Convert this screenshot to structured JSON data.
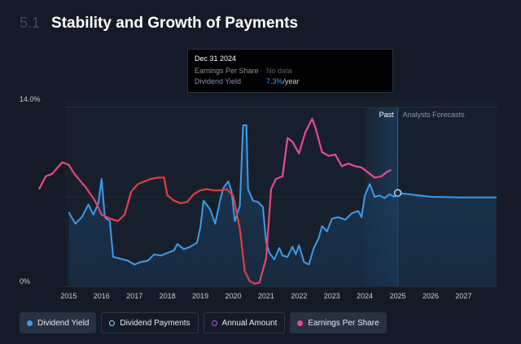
{
  "header": {
    "section_number": "5.1",
    "title": "Stability and Growth of Payments"
  },
  "tooltip": {
    "date": "Dec 31 2024",
    "eps_label": "Earnings Per Share",
    "eps_value": "No data",
    "yield_label": "Dividend Yield",
    "yield_value": "7.3%",
    "yield_unit": "/year"
  },
  "legend": [
    {
      "label": "Dividend Yield",
      "color": "#3d9be9",
      "style": "filled",
      "active": true
    },
    {
      "label": "Dividend Payments",
      "color": "#8fd3f4",
      "style": "hollow",
      "active": false
    },
    {
      "label": "Annual Amount",
      "color": "#a45ee5",
      "style": "hollow",
      "active": false
    },
    {
      "label": "Earnings Per Share",
      "color": "#e64d8c",
      "style": "filled",
      "active": true
    }
  ],
  "chart_data": {
    "type": "line",
    "x_ticks": [
      "2015",
      "2016",
      "2017",
      "2018",
      "2019",
      "2020",
      "2021",
      "2022",
      "2023",
      "2024",
      "2025",
      "2026",
      "2027"
    ],
    "y_ticks": [
      "0%",
      "14.0%"
    ],
    "ylim": [
      0,
      14
    ],
    "xlim": [
      2014.1,
      2028.3
    ],
    "past_label": "Past",
    "forecast_label": "Analysts Forecasts",
    "past_end": 2025.0,
    "highlight_start": 2024.0,
    "highlight_point": [
      2025.0,
      7.3
    ],
    "colors": {
      "dividend_yield": "#3d9be9",
      "eps": "#e64d8c",
      "eps_transition": "#e23d3d",
      "text": "#c8ccd4",
      "grid": "#2a3140"
    },
    "series": [
      {
        "name": "Dividend Yield",
        "key": "dividend_yield",
        "points": [
          [
            2015.0,
            5.8
          ],
          [
            2015.2,
            4.9
          ],
          [
            2015.4,
            5.4
          ],
          [
            2015.6,
            6.4
          ],
          [
            2015.75,
            5.6
          ],
          [
            2015.9,
            6.5
          ],
          [
            2016.0,
            8.4
          ],
          [
            2016.1,
            5.4
          ],
          [
            2016.25,
            5.1
          ],
          [
            2016.35,
            2.3
          ],
          [
            2016.5,
            2.2
          ],
          [
            2016.8,
            2.0
          ],
          [
            2017.0,
            1.7
          ],
          [
            2017.2,
            1.9
          ],
          [
            2017.4,
            2.0
          ],
          [
            2017.6,
            2.5
          ],
          [
            2017.8,
            2.4
          ],
          [
            2018.0,
            2.6
          ],
          [
            2018.2,
            2.8
          ],
          [
            2018.3,
            3.3
          ],
          [
            2018.5,
            2.9
          ],
          [
            2018.7,
            3.1
          ],
          [
            2018.9,
            3.4
          ],
          [
            2019.0,
            4.6
          ],
          [
            2019.1,
            6.7
          ],
          [
            2019.3,
            6.0
          ],
          [
            2019.45,
            4.9
          ],
          [
            2019.6,
            6.7
          ],
          [
            2019.7,
            7.7
          ],
          [
            2019.85,
            8.2
          ],
          [
            2019.95,
            7.4
          ],
          [
            2020.05,
            5.1
          ],
          [
            2020.2,
            6.3
          ],
          [
            2020.3,
            12.6
          ],
          [
            2020.4,
            12.6
          ],
          [
            2020.45,
            7.6
          ],
          [
            2020.6,
            6.7
          ],
          [
            2020.75,
            6.6
          ],
          [
            2020.9,
            6.2
          ],
          [
            2021.0,
            3.5
          ],
          [
            2021.1,
            2.6
          ],
          [
            2021.25,
            2.1
          ],
          [
            2021.4,
            3.0
          ],
          [
            2021.5,
            2.4
          ],
          [
            2021.65,
            2.3
          ],
          [
            2021.8,
            3.1
          ],
          [
            2021.9,
            2.5
          ],
          [
            2022.0,
            3.2
          ],
          [
            2022.15,
            1.9
          ],
          [
            2022.3,
            1.7
          ],
          [
            2022.45,
            3.0
          ],
          [
            2022.6,
            3.8
          ],
          [
            2022.7,
            4.7
          ],
          [
            2022.85,
            4.3
          ],
          [
            2023.0,
            5.3
          ],
          [
            2023.2,
            5.4
          ],
          [
            2023.4,
            5.2
          ],
          [
            2023.6,
            5.7
          ],
          [
            2023.8,
            5.9
          ],
          [
            2023.9,
            5.4
          ],
          [
            2024.0,
            7.1
          ],
          [
            2024.15,
            8.0
          ],
          [
            2024.3,
            7.0
          ],
          [
            2024.45,
            7.1
          ],
          [
            2024.6,
            6.9
          ],
          [
            2024.75,
            7.2
          ],
          [
            2024.9,
            7.0
          ],
          [
            2025.0,
            7.3
          ],
          [
            2026.0,
            7.0
          ],
          [
            2027.0,
            6.95
          ],
          [
            2028.0,
            6.95
          ]
        ]
      },
      {
        "name": "Earnings Per Share",
        "key": "eps",
        "points": [
          [
            2014.1,
            7.6
          ],
          [
            2014.3,
            8.6
          ],
          [
            2014.5,
            8.8
          ],
          [
            2014.8,
            9.7
          ],
          [
            2015.0,
            9.5
          ],
          [
            2015.2,
            8.7
          ],
          [
            2015.5,
            7.8
          ],
          [
            2015.8,
            6.7
          ],
          [
            2016.0,
            5.6
          ],
          [
            2016.25,
            5.3
          ],
          [
            2016.5,
            5.1
          ],
          [
            2016.7,
            5.6
          ],
          [
            2016.9,
            7.4
          ],
          [
            2017.1,
            8.0
          ],
          [
            2017.3,
            8.2
          ],
          [
            2017.5,
            8.4
          ],
          [
            2017.7,
            8.5
          ],
          [
            2017.9,
            8.5
          ],
          [
            2018.0,
            7.1
          ],
          [
            2018.2,
            6.7
          ],
          [
            2018.4,
            6.5
          ],
          [
            2018.6,
            6.6
          ],
          [
            2018.8,
            7.2
          ],
          [
            2019.0,
            7.5
          ],
          [
            2019.2,
            7.6
          ],
          [
            2019.4,
            7.5
          ],
          [
            2019.6,
            7.5
          ],
          [
            2019.8,
            7.6
          ],
          [
            2020.0,
            7.1
          ],
          [
            2020.2,
            4.5
          ],
          [
            2020.35,
            1.2
          ],
          [
            2020.5,
            0.4
          ],
          [
            2020.65,
            0.2
          ],
          [
            2020.8,
            0.3
          ],
          [
            2021.0,
            2.2
          ],
          [
            2021.15,
            7.6
          ],
          [
            2021.3,
            8.4
          ],
          [
            2021.5,
            8.6
          ],
          [
            2021.65,
            11.6
          ],
          [
            2021.8,
            11.3
          ],
          [
            2022.0,
            10.4
          ],
          [
            2022.2,
            12.1
          ],
          [
            2022.4,
            13.1
          ],
          [
            2022.5,
            12.4
          ],
          [
            2022.7,
            10.5
          ],
          [
            2022.9,
            10.2
          ],
          [
            2023.1,
            10.3
          ],
          [
            2023.3,
            9.4
          ],
          [
            2023.5,
            9.6
          ],
          [
            2023.7,
            9.4
          ],
          [
            2023.9,
            9.3
          ],
          [
            2024.1,
            8.9
          ],
          [
            2024.3,
            8.5
          ],
          [
            2024.5,
            8.6
          ],
          [
            2024.7,
            9.0
          ],
          [
            2024.8,
            9.1
          ]
        ]
      }
    ]
  }
}
